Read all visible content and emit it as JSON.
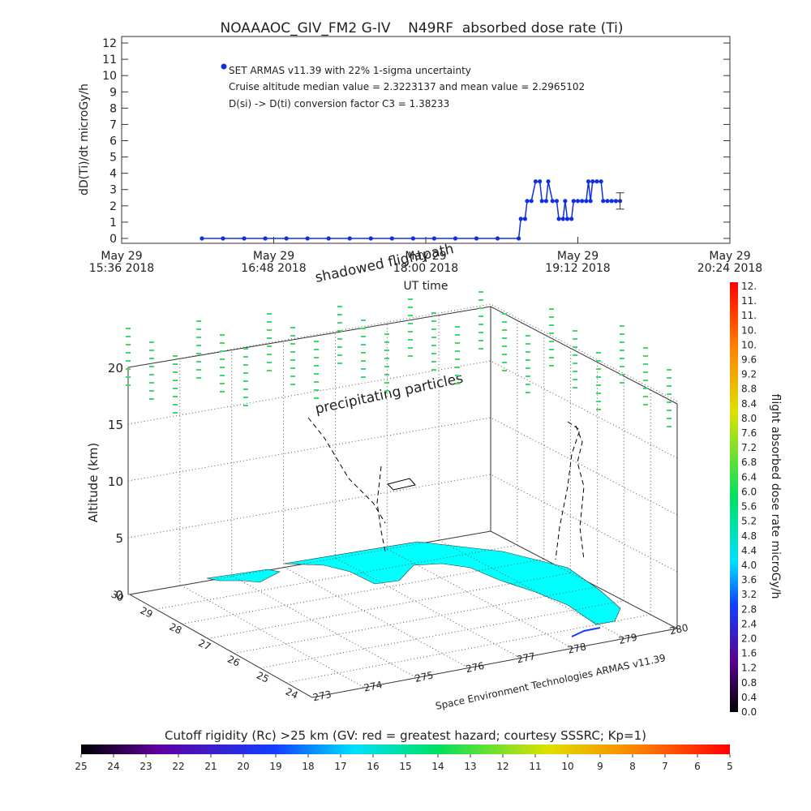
{
  "chart_data": {
    "type": "line",
    "title": "NOAAAOC_GIV_FM2 G-IV    N49RF  absorbed dose rate (Ti)",
    "ylabel": "dD(Ti)/dt microGy/h",
    "xlabel": "UT time",
    "xlim": [
      "2018-05-29 15:36",
      "2018-05-29 20:24"
    ],
    "xticks": [
      {
        "value": "2018-05-29 15:36",
        "label": [
          "May 29",
          "15:36 2018"
        ]
      },
      {
        "value": "2018-05-29 16:48",
        "label": [
          "May 29",
          "16:48 2018"
        ]
      },
      {
        "value": "2018-05-29 18:00",
        "label": [
          "May 29",
          "18:00 2018"
        ]
      },
      {
        "value": "2018-05-29 19:12",
        "label": [
          "May 29",
          "19:12 2018"
        ]
      },
      {
        "value": "2018-05-29 20:24",
        "label": [
          "May 29",
          "20:24 2018"
        ]
      }
    ],
    "ylim": [
      -0.3,
      12.4
    ],
    "yticks": [
      0,
      1,
      2,
      3,
      4,
      5,
      6,
      7,
      8,
      9,
      10,
      11,
      12
    ],
    "series": [
      {
        "name": "SET ARMAS v11.39 with 22% 1-sigma uncertainty",
        "color": "#1030e0",
        "x": [
          "2018-05-29 16:14",
          "2018-05-29 16:24",
          "2018-05-29 16:34",
          "2018-05-29 16:44",
          "2018-05-29 16:54",
          "2018-05-29 17:04",
          "2018-05-29 17:14",
          "2018-05-29 17:24",
          "2018-05-29 17:34",
          "2018-05-29 17:44",
          "2018-05-29 17:54",
          "2018-05-29 18:04",
          "2018-05-29 18:14",
          "2018-05-29 18:24",
          "2018-05-29 18:34",
          "2018-05-29 18:44",
          "2018-05-29 18:45",
          "2018-05-29 18:47",
          "2018-05-29 18:48",
          "2018-05-29 18:50",
          "2018-05-29 18:52",
          "2018-05-29 18:54",
          "2018-05-29 18:55",
          "2018-05-29 18:57",
          "2018-05-29 18:58",
          "2018-05-29 19:00",
          "2018-05-29 19:02",
          "2018-05-29 19:03",
          "2018-05-29 19:05",
          "2018-05-29 19:06",
          "2018-05-29 19:07",
          "2018-05-29 19:09",
          "2018-05-29 19:10",
          "2018-05-29 19:12",
          "2018-05-29 19:14",
          "2018-05-29 19:16",
          "2018-05-29 19:17",
          "2018-05-29 19:18",
          "2018-05-29 19:19",
          "2018-05-29 19:21",
          "2018-05-29 19:23",
          "2018-05-29 19:24",
          "2018-05-29 19:26",
          "2018-05-29 19:28",
          "2018-05-29 19:30",
          "2018-05-29 19:32"
        ],
        "values": [
          0,
          0,
          0,
          0,
          0,
          0,
          0,
          0,
          0,
          0,
          0,
          0,
          0,
          0,
          0,
          0,
          1.2,
          1.2,
          2.3,
          2.3,
          3.5,
          3.5,
          2.3,
          2.3,
          3.5,
          2.3,
          2.3,
          1.2,
          1.2,
          2.3,
          1.2,
          1.2,
          2.3,
          2.3,
          2.3,
          2.3,
          3.5,
          2.3,
          3.5,
          3.5,
          3.5,
          2.3,
          2.3,
          2.3,
          2.3,
          2.3
        ]
      }
    ],
    "error_bar": {
      "x": "2018-05-29 19:32",
      "value": 2.3,
      "error": 0.5
    },
    "annotations": [
      "Cruise altitude median value = 2.3223137 and mean value = 2.2965102",
      "D(si) -> D(ti) conversion factor C3 = 1.38233"
    ]
  },
  "panel3d": {
    "zlabel": "Altitude (km)",
    "zticks": [
      0,
      5,
      10,
      15,
      20
    ],
    "lat_ticks": [
      "30",
      "29",
      "28",
      "27",
      "26",
      "25",
      "24"
    ],
    "lon_ticks": [
      "273",
      "274",
      "275",
      "276",
      "277",
      "278",
      "279",
      "280"
    ],
    "shadowed": "shadowed flightpath",
    "precipitating": "precipitating particles",
    "credit": "Space Environment Technologies ARMAS v11.39"
  },
  "dose_colorbar": {
    "title": "flight absorbed dose rate microGy/h",
    "labels": [
      "0.0",
      "0.4",
      "0.8",
      "1.2",
      "1.6",
      "2.0",
      "2.4",
      "2.8",
      "3.2",
      "3.6",
      "4.0",
      "4.4",
      "4.8",
      "5.2",
      "5.6",
      "6.0",
      "6.4",
      "6.8",
      "7.2",
      "7.6",
      "8.0",
      "8.4",
      "8.8",
      "9.2",
      "9.6",
      "10.",
      "10.",
      "11.",
      "11.",
      "12."
    ]
  },
  "rc_colorbar": {
    "title": "Cutoff rigidity (Rc) >25 km (GV: red = greatest hazard; courtesy SSSRC; Kp=1)",
    "labels": [
      "25",
      "24",
      "23",
      "22",
      "21",
      "20",
      "19",
      "18",
      "17",
      "16",
      "15",
      "14",
      "13",
      "12",
      "11",
      "10",
      "9",
      "8",
      "7",
      "6",
      "5"
    ]
  }
}
